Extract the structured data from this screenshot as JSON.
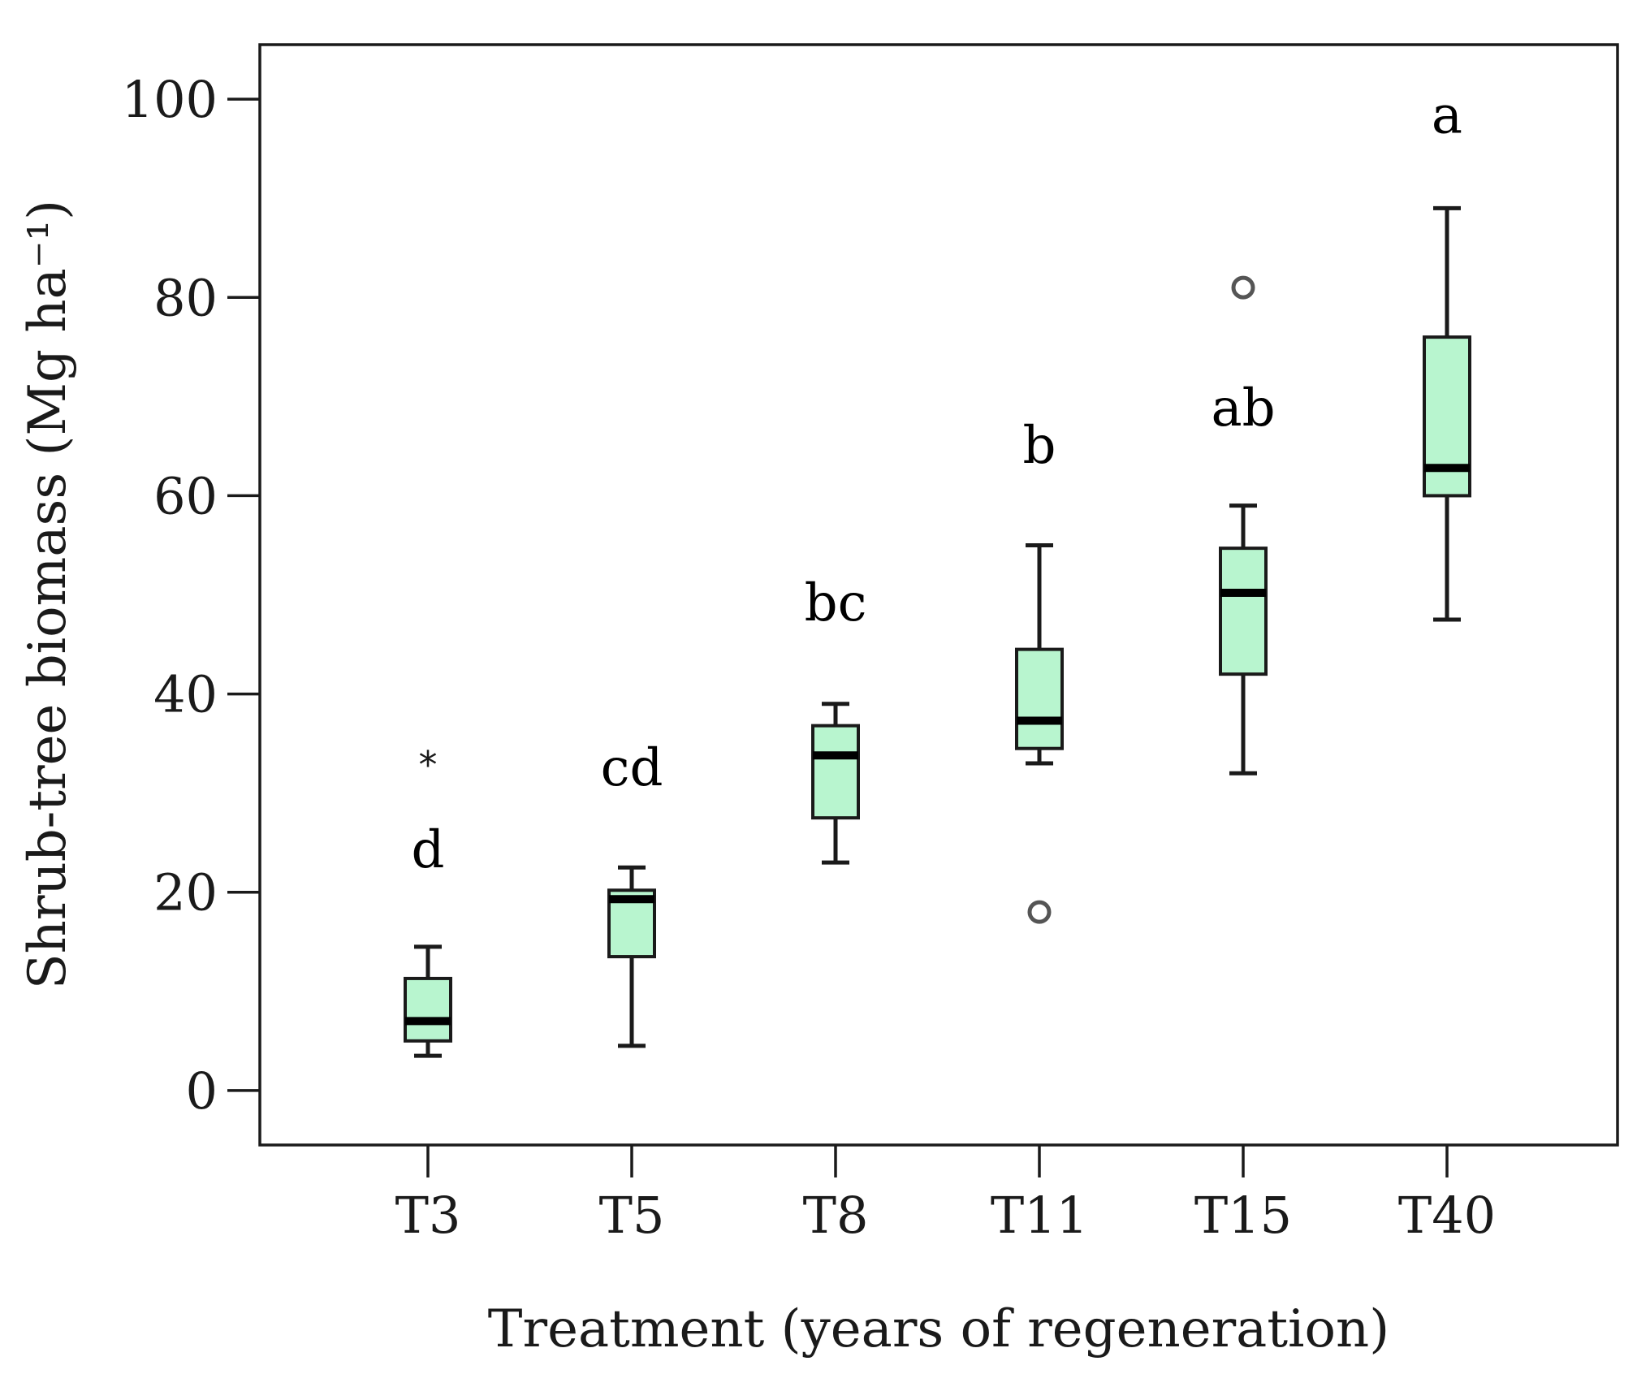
{
  "colors": {
    "box_fill": "#b8f5cf",
    "line": "#1a1a1a"
  },
  "chart_data": {
    "type": "box",
    "title": "",
    "xlabel": "Treatment (years of regeneration)",
    "ylabel": "Shrub-tree biomass (Mg ha⁻¹)",
    "ylim": [
      -5.5,
      105.5
    ],
    "yticks": [
      0,
      20,
      40,
      60,
      80,
      100
    ],
    "ytick_labels": [
      "0",
      "20",
      "40",
      "60",
      "80",
      "100"
    ],
    "categories": [
      "T3",
      "T5",
      "T8",
      "T11",
      "T15",
      "T40"
    ],
    "boxes": [
      {
        "category": "T3",
        "whisker_low": 3.5,
        "q1": 5.0,
        "median": 7.0,
        "q3": 11.3,
        "whisker_high": 14.5,
        "letter": "d",
        "letter_y": 22.5,
        "outliers": [],
        "extremes": [
          33.5
        ]
      },
      {
        "category": "T5",
        "whisker_low": 4.5,
        "q1": 13.5,
        "median": 19.3,
        "q3": 20.2,
        "whisker_high": 22.5,
        "letter": "cd",
        "letter_y": 30.8,
        "outliers": [],
        "extremes": []
      },
      {
        "category": "T8",
        "whisker_low": 23.0,
        "q1": 27.5,
        "median": 33.8,
        "q3": 36.8,
        "whisker_high": 39.0,
        "letter": "bc",
        "letter_y": 47.4,
        "outliers": [],
        "extremes": []
      },
      {
        "category": "T11",
        "whisker_low": 33.0,
        "q1": 34.5,
        "median": 37.3,
        "q3": 44.5,
        "whisker_high": 55.0,
        "letter": "b",
        "letter_y": 63.3,
        "outliers": [
          18.0
        ],
        "extremes": []
      },
      {
        "category": "T15",
        "whisker_low": 32.0,
        "q1": 42.0,
        "median": 50.2,
        "q3": 54.7,
        "whisker_high": 59.0,
        "letter": "ab",
        "letter_y": 67.1,
        "outliers": [
          81.0
        ],
        "extremes": []
      },
      {
        "category": "T40",
        "whisker_low": 47.5,
        "q1": 60.0,
        "median": 62.8,
        "q3": 76.0,
        "whisker_high": 89.0,
        "letter": "a",
        "letter_y": 96.6,
        "outliers": [],
        "extremes": []
      }
    ],
    "extreme_marker": "*"
  }
}
